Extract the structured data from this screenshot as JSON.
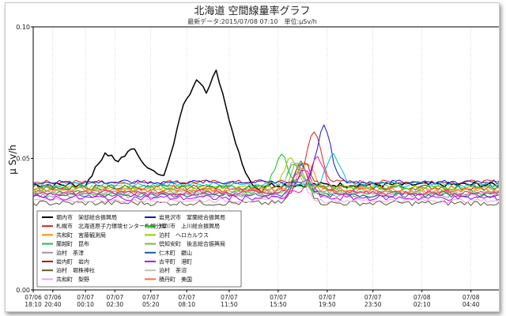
{
  "chart_data": {
    "type": "line",
    "title": "北海道 空間線量率グラフ",
    "subtitle": "最新データ:2015/07/08 07:10　単位:μSv/h",
    "ylabel": "μ Sv/h",
    "xlabel": "",
    "ylim": [
      0,
      0.1
    ],
    "yticks": [
      "0.00",
      "0.05",
      "0.10"
    ],
    "grid": true,
    "legend_placement": "inside lower-left",
    "x_tick_labels": [
      [
        "07/06",
        "18:10"
      ],
      [
        "07/06",
        "20:40"
      ],
      [
        "07/07",
        "00:10"
      ],
      [
        "07/07",
        "02:30"
      ],
      [
        "07/07",
        "05:20"
      ],
      [
        "07/07",
        "08:10"
      ],
      [
        "07/07",
        "11:50"
      ],
      [
        "07/07",
        "15:50"
      ],
      [
        "07/07",
        "19:50"
      ],
      [
        "07/07",
        "23:50"
      ],
      [
        "07/08",
        "02:10"
      ],
      [
        "07/08",
        "04:40"
      ]
    ],
    "x_tick_positions": [
      0,
      6,
      16,
      25,
      36,
      47,
      60,
      75,
      90,
      104,
      119,
      134
    ],
    "n_points": 145,
    "series": [
      {
        "name": "堀内市　栄邸総合振興局",
        "color": "#000000",
        "base": 0.04,
        "jitter": 0.001,
        "peak": 0.007,
        "peak_at": 60,
        "hump": [
          [
            16,
            0.04
          ],
          [
            18,
            0.044
          ],
          [
            22,
            0.052
          ],
          [
            26,
            0.049
          ],
          [
            31,
            0.054
          ],
          [
            33,
            0.049
          ],
          [
            37,
            0.045
          ],
          [
            40,
            0.043
          ],
          [
            43,
            0.056
          ],
          [
            46,
            0.07
          ],
          [
            50,
            0.08
          ],
          [
            53,
            0.075
          ],
          [
            56,
            0.083
          ],
          [
            59,
            0.07
          ],
          [
            62,
            0.055
          ],
          [
            66,
            0.042
          ],
          [
            70,
            0.037
          ]
        ]
      },
      {
        "name": "札幌市　北海道原子力環境センター札幌分室",
        "color": "#d81e1e",
        "base": 0.041,
        "jitter": 0.0008,
        "peak": 0.019,
        "peak_at": 86
      },
      {
        "name": "共和町　宮藤観測局",
        "color": "#ff8c00",
        "base": 0.038,
        "jitter": 0.0008,
        "peak": 0.01,
        "peak_at": 84
      },
      {
        "name": "蘭越町　昆布",
        "color": "#2db34b",
        "base": 0.037,
        "jitter": 0.0008,
        "peak": 0.011,
        "peak_at": 80
      },
      {
        "name": "泊村　茶津",
        "color": "#9a9a9a",
        "base": 0.036,
        "jitter": 0.001,
        "peak": 0.008,
        "peak_at": 82
      },
      {
        "name": "岩内町　岩内",
        "color": "#a02020",
        "base": 0.039,
        "jitter": 0.001,
        "peak": 0.009,
        "peak_at": 83
      },
      {
        "name": "泊村　堀株神社",
        "color": "#5c5c2e",
        "base": 0.033,
        "jitter": 0.001,
        "peak": 0.016,
        "peak_at": 82
      },
      {
        "name": "共和町　梨野",
        "color": "#f0a0e8",
        "base": 0.034,
        "jitter": 0.0008,
        "peak": 0.011,
        "peak_at": 81
      },
      {
        "name": "岩見沢市　室蘭総合振興局",
        "color": "#1414cc",
        "base": 0.041,
        "jitter": 0.0008,
        "peak": 0.021,
        "peak_at": 89
      },
      {
        "name": "旭川市　上川総合振興局",
        "color": "#00c800",
        "base": 0.039,
        "jitter": 0.001,
        "peak": 0.012,
        "peak_at": 76
      },
      {
        "name": "泊村　ヘロカルウス",
        "color": "#99cc00",
        "base": 0.039,
        "jitter": 0.001,
        "peak": 0.011,
        "peak_at": 79
      },
      {
        "name": "倶知安町　後志総合振興局",
        "color": "#77bb44",
        "base": 0.037,
        "jitter": 0.001,
        "peak": 0.011,
        "peak_at": 81
      },
      {
        "name": "仁木町　銀山",
        "color": "#2255aa",
        "base": 0.036,
        "jitter": 0.0008,
        "peak": 0.012,
        "peak_at": 82
      },
      {
        "name": "古平町　港町",
        "color": "#b400ff",
        "base": 0.035,
        "jitter": 0.001,
        "peak": 0.011,
        "peak_at": 83
      },
      {
        "name": "泊村　茶沼",
        "color": "#c0c0c0",
        "base": 0.037,
        "jitter": 0.0008,
        "peak": 0.012,
        "peak_at": 80
      },
      {
        "name": "積丹町　美国",
        "color": "#ff6a3d",
        "base": 0.038,
        "jitter": 0.001,
        "peak": 0.009,
        "peak_at": 82
      },
      {
        "name": "",
        "color": "#ff1493",
        "base": 0.037,
        "jitter": 0.001,
        "peak": 0.013,
        "peak_at": 87
      },
      {
        "name": "",
        "color": "#00bcd4",
        "base": 0.04,
        "jitter": 0.001,
        "peak": 0.011,
        "peak_at": 92
      }
    ]
  }
}
